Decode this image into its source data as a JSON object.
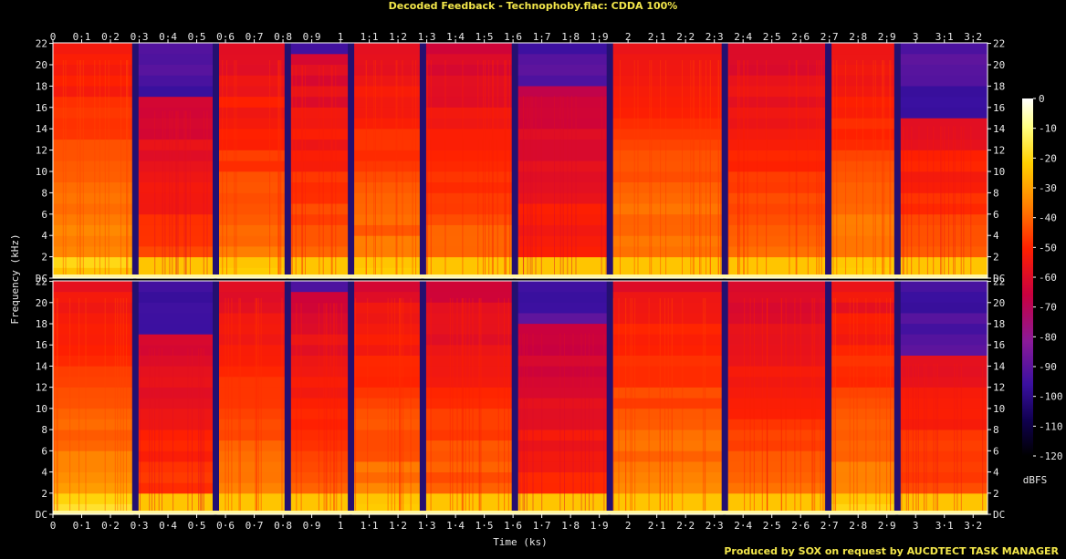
{
  "title": "Decoded Feedback - Technophoby.flac: CDDA 100%",
  "footer": "Produced by SOX on request by AUCDTECT TASK MANAGER",
  "chart_data": {
    "type": "heatmap",
    "xlabel": "Time (ks)",
    "ylabel": "Frequency (kHz)",
    "colorbar_label": "dBFS",
    "xlim": [
      0,
      3.25
    ],
    "ylim": [
      0,
      22.05
    ],
    "channels": 2,
    "x_ticks": [
      "0",
      "0·1",
      "0·2",
      "0·3",
      "0·4",
      "0·5",
      "0·6",
      "0·7",
      "0·8",
      "0·9",
      "1",
      "1·1",
      "1·2",
      "1·3",
      "1·4",
      "1·5",
      "1·6",
      "1·7",
      "1·8",
      "1·9",
      "2",
      "2·1",
      "2·2",
      "2·3",
      "2·4",
      "2·5",
      "2·6",
      "2·7",
      "2·8",
      "2·9",
      "3",
      "3·1",
      "3·2"
    ],
    "y_ticks": [
      "DC",
      "2",
      "4",
      "6",
      "8",
      "10",
      "12",
      "14",
      "16",
      "18",
      "20",
      "22"
    ],
    "colorbar_ticks": [
      "0",
      "-10",
      "-20",
      "-30",
      "-40",
      "-50",
      "-60",
      "-70",
      "-80",
      "-90",
      "-100",
      "-110",
      "-120"
    ],
    "colorbar_range": [
      -120,
      0
    ],
    "segments": [
      {
        "start": 0.0,
        "end": 0.28,
        "level": -48,
        "cutoff": 21.5
      },
      {
        "start": 0.29,
        "end": 0.56,
        "level": -62,
        "cutoff": 16.5
      },
      {
        "start": 0.57,
        "end": 0.81,
        "level": -52,
        "cutoff": 21.5
      },
      {
        "start": 0.82,
        "end": 1.03,
        "level": -56,
        "cutoff": 21.0
      },
      {
        "start": 1.04,
        "end": 1.28,
        "level": -52,
        "cutoff": 21.5
      },
      {
        "start": 1.29,
        "end": 1.6,
        "level": -55,
        "cutoff": 21.5
      },
      {
        "start": 1.61,
        "end": 1.93,
        "level": -64,
        "cutoff": 18.0
      },
      {
        "start": 1.94,
        "end": 2.33,
        "level": -50,
        "cutoff": 21.5
      },
      {
        "start": 2.34,
        "end": 2.69,
        "level": -55,
        "cutoff": 21.5
      },
      {
        "start": 2.7,
        "end": 2.93,
        "level": -50,
        "cutoff": 21.5
      },
      {
        "start": 2.94,
        "end": 3.25,
        "level": -58,
        "cutoff": 15.0
      }
    ],
    "gaps": [
      0.285,
      0.565,
      0.815,
      1.035,
      1.285,
      1.605,
      1.935,
      2.335,
      2.695,
      2.935
    ]
  }
}
